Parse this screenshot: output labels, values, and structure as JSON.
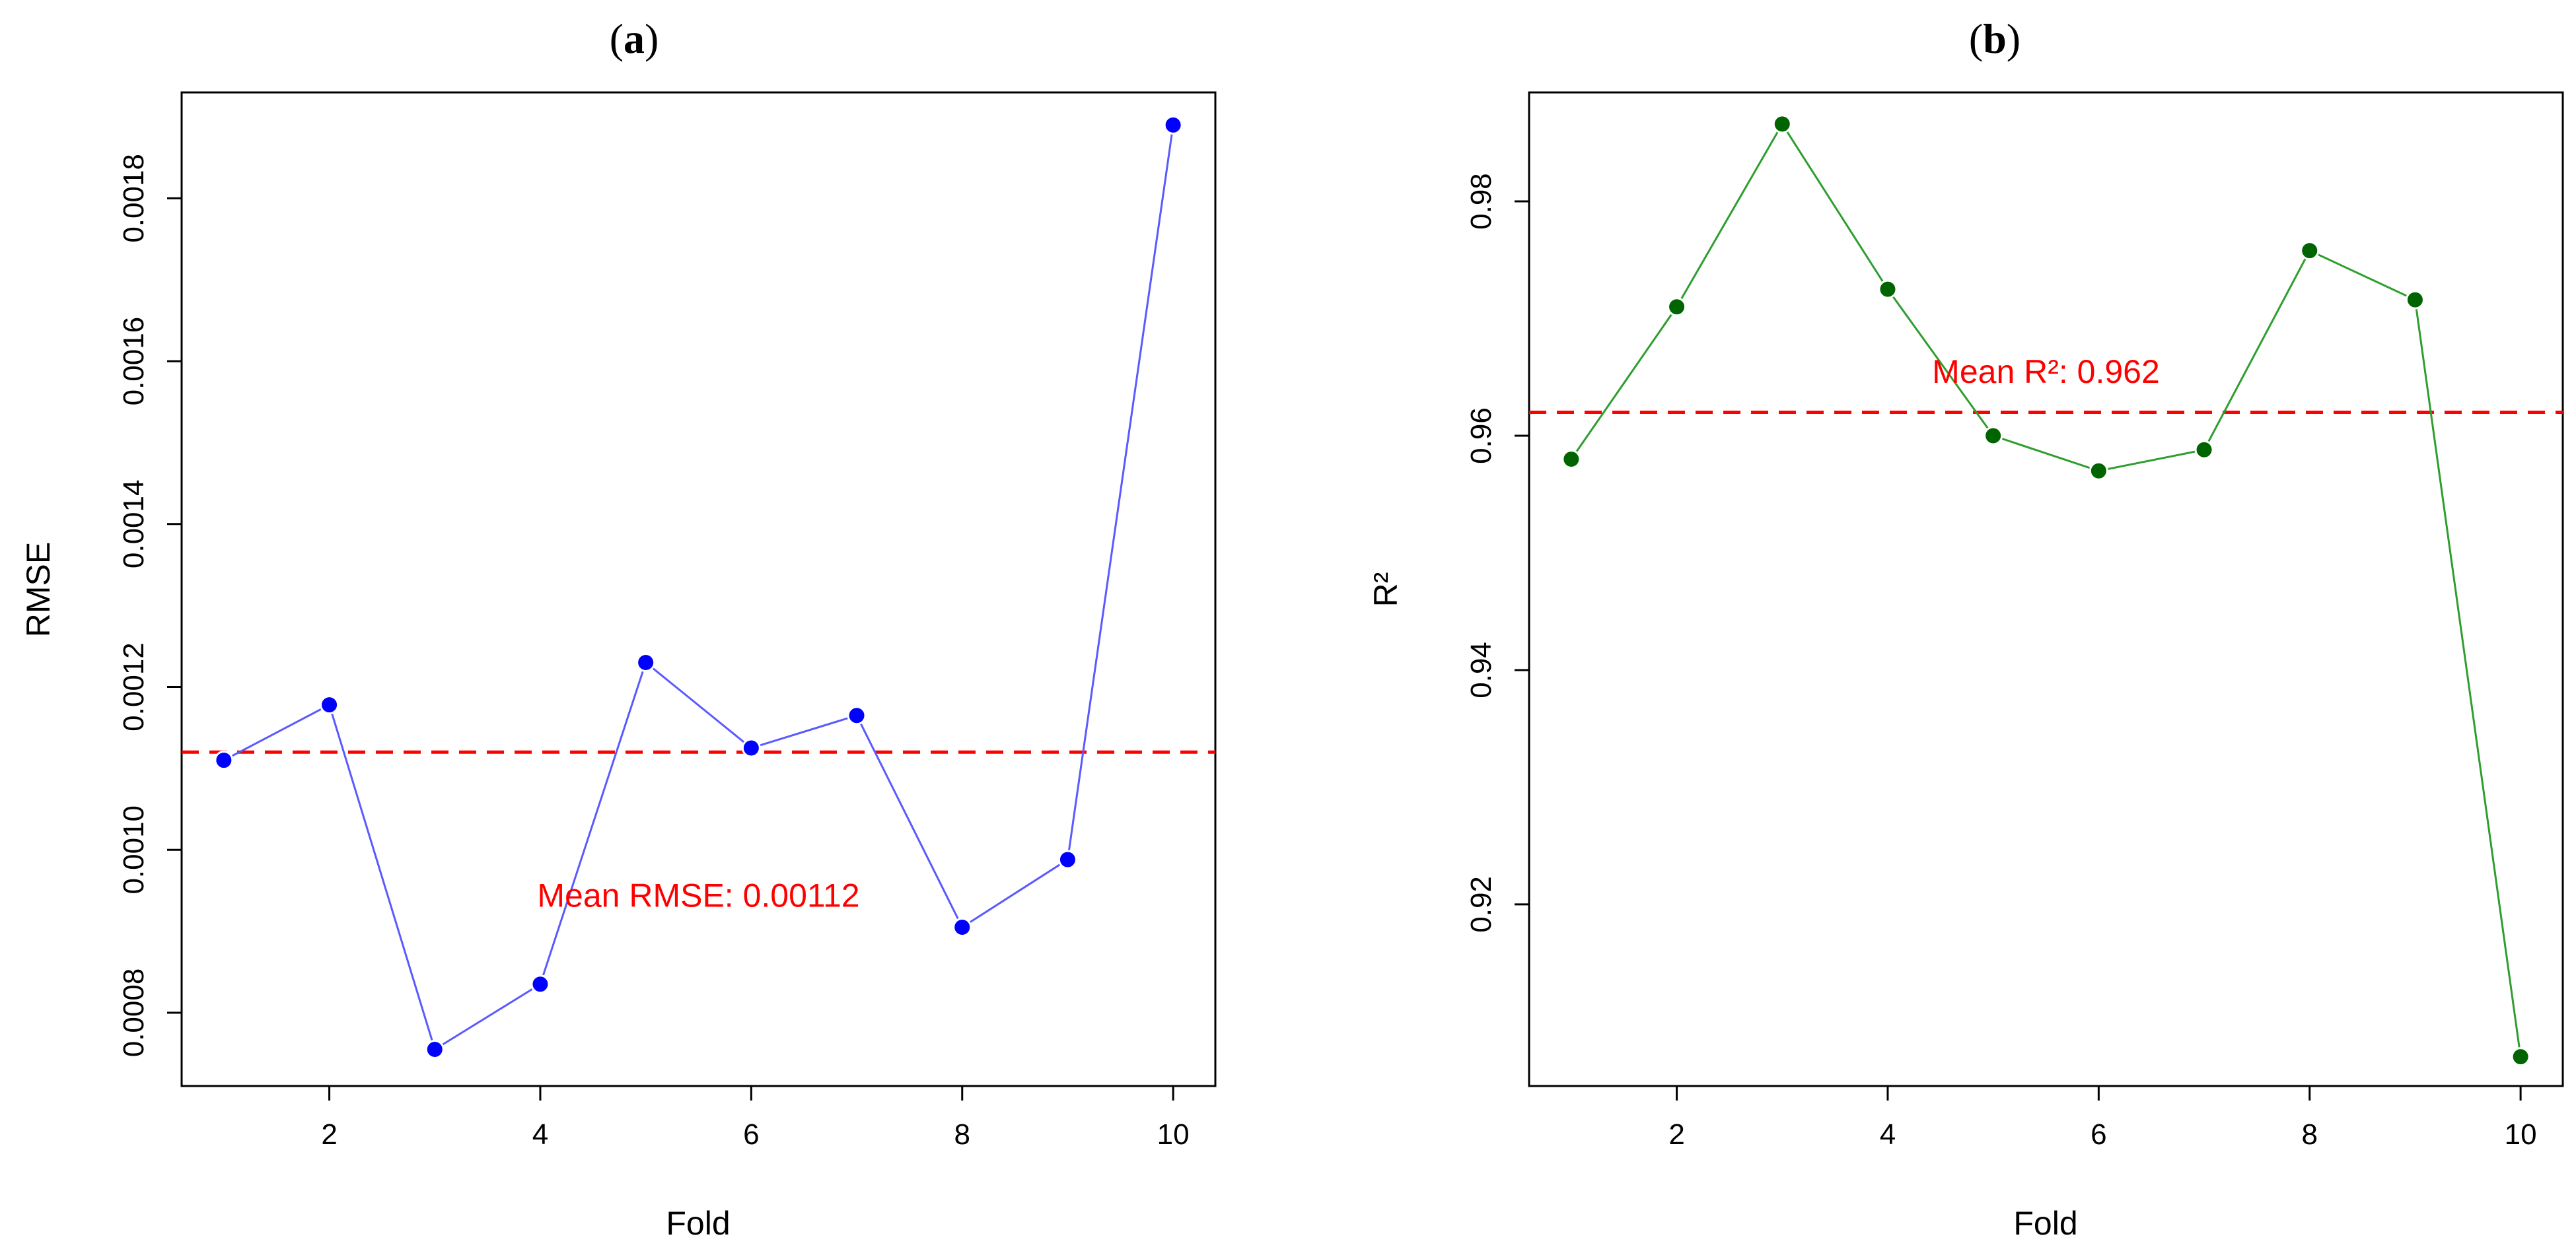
{
  "chart_data": [
    {
      "type": "line",
      "panel_label": {
        "open": "(",
        "letter": "a",
        "close": ")"
      },
      "xlabel": "Fold",
      "ylabel": "RMSE",
      "x": [
        1,
        2,
        3,
        4,
        5,
        6,
        7,
        8,
        9,
        10
      ],
      "values": [
        0.00111,
        0.001178,
        0.000755,
        0.000835,
        0.00123,
        0.001125,
        0.001165,
        0.000905,
        0.000988,
        0.00189
      ],
      "xlim": [
        0.6,
        10.4
      ],
      "ylim": [
        0.00071,
        0.00193
      ],
      "xticks": [
        2,
        4,
        6,
        8,
        10
      ],
      "yticks": [
        0.0008,
        0.001,
        0.0012,
        0.0014,
        0.0016,
        0.0018
      ],
      "ytick_labels": [
        "0.0008",
        "0.0010",
        "0.0012",
        "0.0014",
        "0.0016",
        "0.0018"
      ],
      "mean": 0.00112,
      "annotation": {
        "text": "Mean RMSE: 0.00112",
        "x": 5.5,
        "y": 0.00093
      },
      "colors": {
        "line": "#5a5aff",
        "point": "#0000ff",
        "mean": "#ff0000"
      },
      "grid": false,
      "legend": "none"
    },
    {
      "type": "line",
      "panel_label": {
        "open": "(",
        "letter": "b",
        "close": ")"
      },
      "xlabel": "Fold",
      "ylabel": "R²",
      "x": [
        1,
        2,
        3,
        4,
        5,
        6,
        7,
        8,
        9,
        10
      ],
      "values": [
        0.958,
        0.971,
        0.9866,
        0.9725,
        0.96,
        0.957,
        0.9588,
        0.9758,
        0.9716,
        0.907
      ],
      "xlim": [
        0.6,
        10.4
      ],
      "ylim": [
        0.9045,
        0.9893
      ],
      "xticks": [
        2,
        4,
        6,
        8,
        10
      ],
      "yticks": [
        0.92,
        0.94,
        0.96,
        0.98
      ],
      "ytick_labels": [
        "0.92",
        "0.94",
        "0.96",
        "0.98"
      ],
      "mean": 0.962,
      "annotation": {
        "text": "Mean R²: 0.962",
        "x": 5.5,
        "y": 0.9645
      },
      "colors": {
        "line": "#2e9e2e",
        "point": "#006400",
        "mean": "#ff0000"
      },
      "grid": false,
      "legend": "none"
    }
  ]
}
